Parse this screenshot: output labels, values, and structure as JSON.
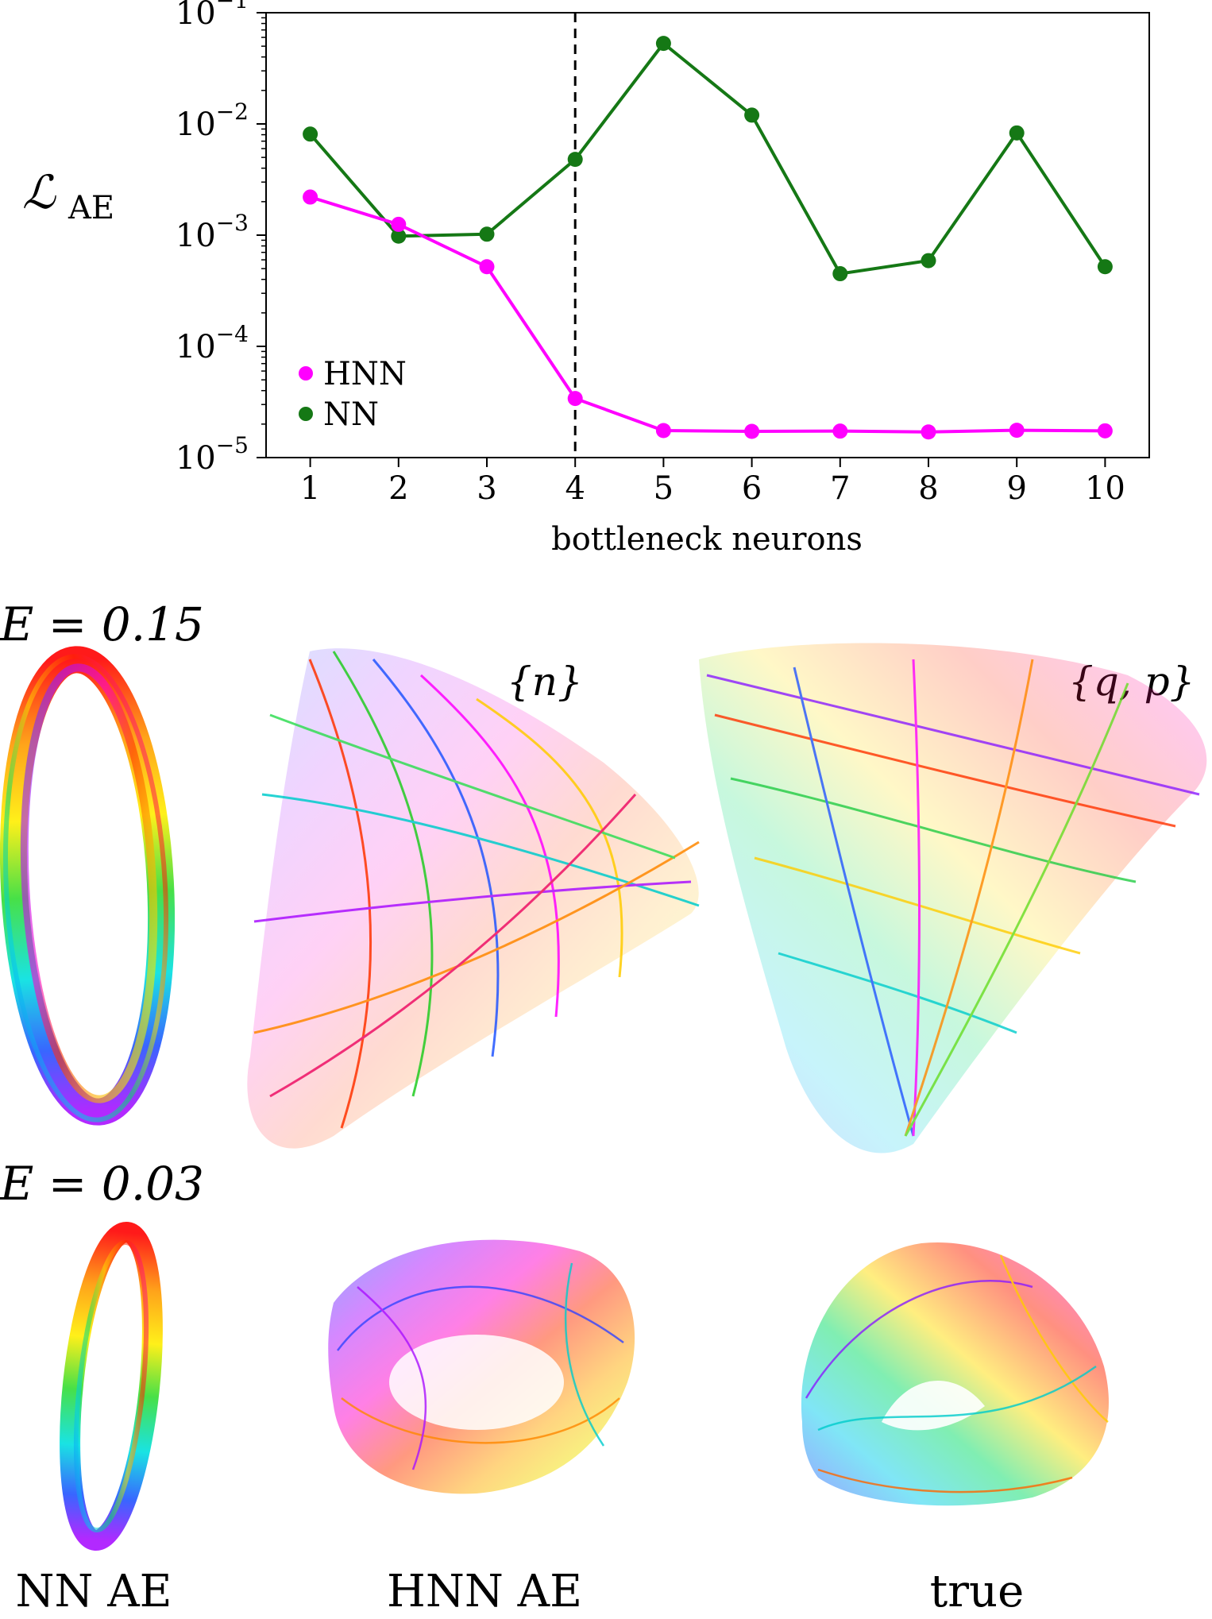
{
  "chart_data": {
    "type": "line",
    "xlabel": "bottleneck neurons",
    "ylabel": "ℒ",
    "ylabel_sub": "AE",
    "yscale": "log",
    "ylim": [
      1e-05,
      0.1
    ],
    "xlim": [
      0.5,
      10.5
    ],
    "x": [
      1,
      2,
      3,
      4,
      5,
      6,
      7,
      8,
      9,
      10
    ],
    "x_ticks": [
      "1",
      "2",
      "3",
      "4",
      "5",
      "6",
      "7",
      "8",
      "9",
      "10"
    ],
    "y_ticks": [
      {
        "value": 1e-05,
        "base": "10",
        "exp": "−5"
      },
      {
        "value": 0.0001,
        "base": "10",
        "exp": "−4"
      },
      {
        "value": 0.001,
        "base": "10",
        "exp": "−3"
      },
      {
        "value": 0.01,
        "base": "10",
        "exp": "−2"
      },
      {
        "value": 0.1,
        "base": "10",
        "exp": "−1"
      }
    ],
    "vline_x": 4,
    "grid": false,
    "legend_position": "bottom-left",
    "series": [
      {
        "name": "HNN",
        "color": "#ff00ff",
        "values": [
          0.0022,
          0.00125,
          0.00052,
          3.4e-05,
          1.75e-05,
          1.72e-05,
          1.73e-05,
          1.7e-05,
          1.76e-05,
          1.74e-05
        ]
      },
      {
        "name": "NN",
        "color": "#157815",
        "values": [
          0.0081,
          0.00098,
          0.00102,
          0.0048,
          0.053,
          0.012,
          0.00045,
          0.00059,
          0.0083,
          0.00052
        ]
      }
    ]
  },
  "panels": {
    "energy_high": "E = 0.15",
    "energy_low": "E = 0.03",
    "label_n": "{n}",
    "label_qp": "{q, p}",
    "captions": [
      "NN AE",
      "HNN AE",
      "true"
    ],
    "colormap": [
      "#ff0000",
      "#ff8c00",
      "#ffee00",
      "#3ddc3d",
      "#00e5e5",
      "#2a4bff",
      "#8a1cff",
      "#ff00ff"
    ]
  }
}
